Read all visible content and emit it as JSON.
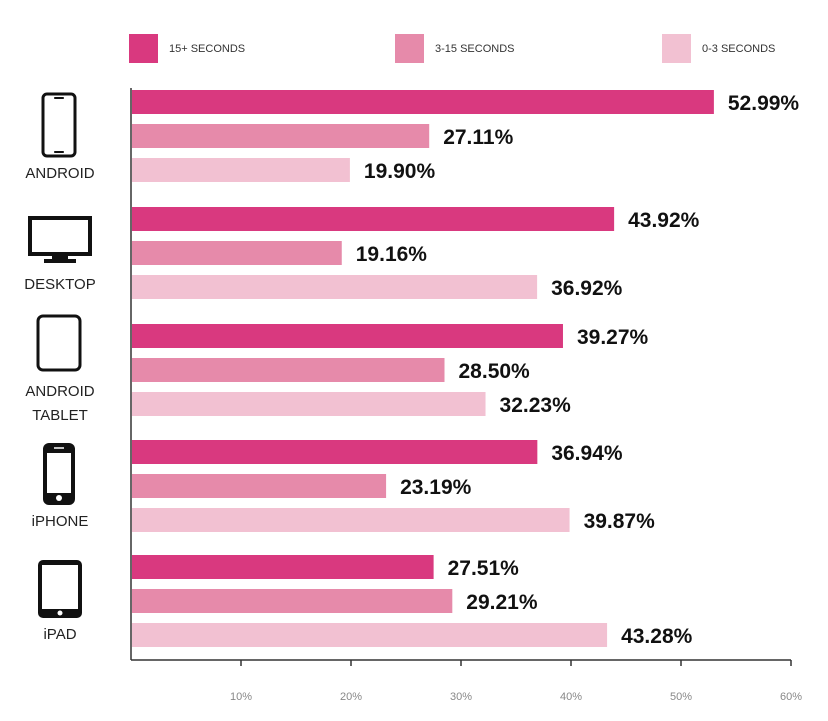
{
  "chart_data": {
    "type": "bar",
    "orientation": "horizontal",
    "categories": [
      {
        "label_lines": [
          "ANDROID"
        ],
        "icon": "smartphone-icon"
      },
      {
        "label_lines": [
          "DESKTOP"
        ],
        "icon": "desktop-monitor-icon"
      },
      {
        "label_lines": [
          "ANDROID",
          "TABLET"
        ],
        "icon": "tablet-icon"
      },
      {
        "label_lines": [
          "iPHONE"
        ],
        "icon": "iphone-icon"
      },
      {
        "label_lines": [
          "iPAD"
        ],
        "icon": "ipad-icon"
      }
    ],
    "series": [
      {
        "name": "15+ SECONDS",
        "color": "#d9397f",
        "values": [
          52.99,
          43.92,
          39.27,
          36.94,
          27.51
        ]
      },
      {
        "name": "3-15 SECONDS",
        "color": "#e68aaa",
        "values": [
          27.11,
          19.16,
          28.5,
          23.19,
          29.21
        ]
      },
      {
        "name": "0-3 SECONDS",
        "color": "#f2c1d2",
        "values": [
          19.9,
          36.92,
          32.23,
          39.87,
          43.28
        ]
      }
    ],
    "value_labels": [
      [
        "52.99%",
        "27.11%",
        "19.90%"
      ],
      [
        "43.92%",
        "19.16%",
        "36.92%"
      ],
      [
        "39.27%",
        "28.50%",
        "32.23%"
      ],
      [
        "36.94%",
        "23.19%",
        "39.87%"
      ],
      [
        "27.51%",
        "29.21%",
        "43.28%"
      ]
    ],
    "x_ticks": [
      "10%",
      "20%",
      "30%",
      "40%",
      "50%",
      "60%"
    ],
    "x_tick_values": [
      10,
      20,
      30,
      40,
      50,
      60
    ],
    "xlim": [
      0,
      60
    ],
    "title": "",
    "xlabel": "",
    "ylabel": "",
    "grid": false,
    "legend_position": "top"
  }
}
